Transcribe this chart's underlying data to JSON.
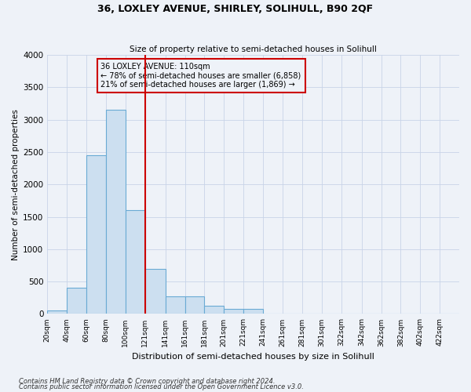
{
  "title": "36, LOXLEY AVENUE, SHIRLEY, SOLIHULL, B90 2QF",
  "subtitle": "Size of property relative to semi-detached houses in Solihull",
  "xlabel": "Distribution of semi-detached houses by size in Solihull",
  "ylabel": "Number of semi-detached properties",
  "footnote1": "Contains HM Land Registry data © Crown copyright and database right 2024.",
  "footnote2": "Contains public sector information licensed under the Open Government Licence v3.0.",
  "bar_color": "#ccdff0",
  "bar_edge_color": "#6aaad4",
  "grid_color": "#c8d4e8",
  "annotation_box_color": "#cc0000",
  "vline_color": "#cc0000",
  "property_size": 110,
  "annotation_title": "36 LOXLEY AVENUE: 110sqm",
  "annotation_line1": "← 78% of semi-detached houses are smaller (6,858)",
  "annotation_line2": "21% of semi-detached houses are larger (1,869) →",
  "categories": [
    "20sqm",
    "40sqm",
    "60sqm",
    "80sqm",
    "100sqm",
    "121sqm",
    "141sqm",
    "161sqm",
    "181sqm",
    "201sqm",
    "221sqm",
    "241sqm",
    "261sqm",
    "281sqm",
    "301sqm",
    "322sqm",
    "342sqm",
    "362sqm",
    "382sqm",
    "402sqm",
    "422sqm"
  ],
  "bin_edges": [
    10,
    30,
    50,
    70,
    90,
    110,
    131,
    151,
    171,
    191,
    211,
    231,
    251,
    271,
    291,
    311,
    332,
    352,
    372,
    392,
    412,
    432
  ],
  "values": [
    50,
    400,
    2450,
    3150,
    1600,
    700,
    275,
    275,
    125,
    75,
    75,
    0,
    0,
    0,
    0,
    0,
    0,
    0,
    0,
    0,
    0
  ],
  "ylim": [
    0,
    4000
  ],
  "yticks": [
    0,
    500,
    1000,
    1500,
    2000,
    2500,
    3000,
    3500,
    4000
  ],
  "background_color": "#eef2f8",
  "fig_width": 6.0,
  "fig_height": 5.0,
  "dpi": 100
}
